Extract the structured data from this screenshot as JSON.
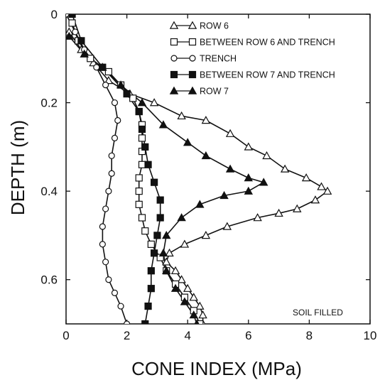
{
  "chart_data": {
    "type": "line",
    "xlabel": "CONE INDEX (MPa)",
    "ylabel": "DEPTH (m)",
    "xlim": [
      0,
      10
    ],
    "ylim": [
      0,
      0.7
    ],
    "y_inverted": true,
    "xticks": [
      "0",
      "2",
      "4",
      "6",
      "8",
      "10"
    ],
    "yticks": [
      "0",
      "0.2",
      "0.4",
      "0.6"
    ],
    "xtick_values": [
      0,
      2,
      4,
      6,
      8,
      10
    ],
    "ytick_values": [
      0,
      0.2,
      0.4,
      0.6
    ],
    "legend_position": "top-right",
    "annotation": "SOIL FILLED",
    "series": [
      {
        "name": "Δ-Δ ROW 6",
        "marker": "open-triangle",
        "points": [
          [
            0.1,
            0.04
          ],
          [
            0.5,
            0.08
          ],
          [
            0.9,
            0.11
          ],
          [
            1.4,
            0.15
          ],
          [
            2.1,
            0.18
          ],
          [
            2.9,
            0.2
          ],
          [
            3.8,
            0.23
          ],
          [
            4.6,
            0.24
          ],
          [
            5.4,
            0.27
          ],
          [
            6.0,
            0.3
          ],
          [
            6.6,
            0.32
          ],
          [
            7.2,
            0.35
          ],
          [
            7.9,
            0.37
          ],
          [
            8.4,
            0.39
          ],
          [
            8.6,
            0.4
          ],
          [
            8.2,
            0.42
          ],
          [
            7.6,
            0.44
          ],
          [
            7.0,
            0.45
          ],
          [
            6.3,
            0.46
          ],
          [
            5.3,
            0.48
          ],
          [
            4.6,
            0.5
          ],
          [
            3.9,
            0.52
          ],
          [
            3.4,
            0.54
          ],
          [
            3.3,
            0.56
          ],
          [
            3.6,
            0.58
          ],
          [
            3.8,
            0.6
          ],
          [
            4.0,
            0.62
          ],
          [
            4.2,
            0.64
          ],
          [
            4.4,
            0.66
          ],
          [
            4.5,
            0.68
          ],
          [
            4.5,
            0.7
          ]
        ]
      },
      {
        "name": "□-□ BETWEEN ROW 6 AND TRENCH",
        "marker": "open-square",
        "points": [
          [
            0.2,
            0.02
          ],
          [
            0.4,
            0.06
          ],
          [
            0.8,
            0.1
          ],
          [
            1.4,
            0.13
          ],
          [
            1.8,
            0.16
          ],
          [
            2.2,
            0.19
          ],
          [
            2.4,
            0.22
          ],
          [
            2.5,
            0.25
          ],
          [
            2.5,
            0.28
          ],
          [
            2.5,
            0.31
          ],
          [
            2.5,
            0.34
          ],
          [
            2.4,
            0.37
          ],
          [
            2.4,
            0.4
          ],
          [
            2.4,
            0.43
          ],
          [
            2.5,
            0.46
          ],
          [
            2.6,
            0.49
          ],
          [
            2.8,
            0.52
          ],
          [
            3.1,
            0.55
          ],
          [
            3.3,
            0.58
          ],
          [
            3.6,
            0.61
          ],
          [
            3.9,
            0.64
          ],
          [
            4.2,
            0.67
          ],
          [
            4.4,
            0.7
          ]
        ]
      },
      {
        "name": "○-○ TRENCH",
        "marker": "open-circle",
        "points": [
          [
            0.0,
            0.0
          ],
          [
            0.3,
            0.04
          ],
          [
            0.6,
            0.08
          ],
          [
            1.0,
            0.12
          ],
          [
            1.3,
            0.16
          ],
          [
            1.6,
            0.2
          ],
          [
            1.7,
            0.24
          ],
          [
            1.6,
            0.28
          ],
          [
            1.5,
            0.32
          ],
          [
            1.5,
            0.36
          ],
          [
            1.4,
            0.4
          ],
          [
            1.3,
            0.44
          ],
          [
            1.2,
            0.48
          ],
          [
            1.2,
            0.52
          ],
          [
            1.3,
            0.56
          ],
          [
            1.4,
            0.6
          ],
          [
            1.6,
            0.63
          ],
          [
            1.8,
            0.66
          ],
          [
            2.0,
            0.7
          ]
        ]
      },
      {
        "name": "■-■ BETWEEN ROW 7 AND TRENCH",
        "marker": "filled-square",
        "points": [
          [
            0.2,
            0.0
          ],
          [
            0.5,
            0.06
          ],
          [
            1.2,
            0.12
          ],
          [
            2.0,
            0.18
          ],
          [
            2.4,
            0.22
          ],
          [
            2.5,
            0.26
          ],
          [
            2.6,
            0.3
          ],
          [
            2.7,
            0.34
          ],
          [
            2.9,
            0.38
          ],
          [
            3.1,
            0.42
          ],
          [
            3.1,
            0.46
          ],
          [
            3.0,
            0.5
          ],
          [
            2.9,
            0.54
          ],
          [
            2.8,
            0.58
          ],
          [
            2.8,
            0.62
          ],
          [
            2.7,
            0.66
          ],
          [
            2.6,
            0.7
          ]
        ]
      },
      {
        "name": "▲-▲ ROW 7",
        "marker": "filled-triangle",
        "points": [
          [
            0.1,
            0.05
          ],
          [
            0.6,
            0.09
          ],
          [
            1.2,
            0.12
          ],
          [
            1.8,
            0.16
          ],
          [
            2.5,
            0.2
          ],
          [
            3.2,
            0.25
          ],
          [
            4.0,
            0.29
          ],
          [
            4.6,
            0.32
          ],
          [
            5.4,
            0.35
          ],
          [
            6.0,
            0.37
          ],
          [
            6.5,
            0.38
          ],
          [
            6.0,
            0.4
          ],
          [
            5.2,
            0.41
          ],
          [
            4.4,
            0.43
          ],
          [
            3.8,
            0.46
          ],
          [
            3.3,
            0.5
          ],
          [
            3.2,
            0.54
          ],
          [
            3.3,
            0.58
          ],
          [
            3.6,
            0.62
          ],
          [
            3.9,
            0.65
          ],
          [
            4.2,
            0.68
          ],
          [
            4.3,
            0.7
          ]
        ]
      }
    ]
  }
}
